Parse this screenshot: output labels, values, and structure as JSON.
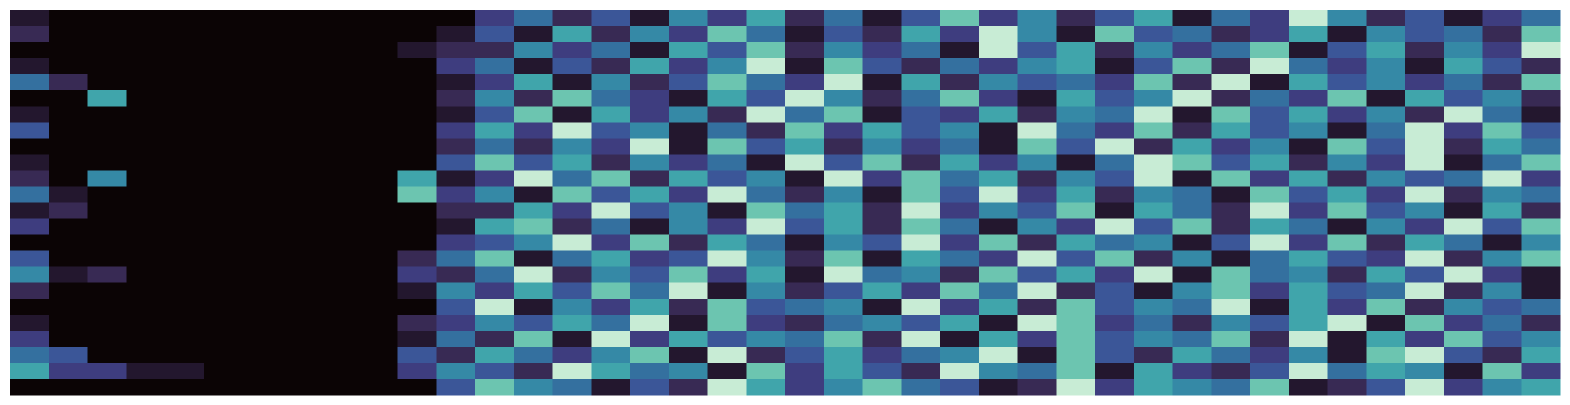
{
  "chart_data": {
    "type": "heatmap",
    "zlim": [
      0,
      9
    ],
    "colormap": [
      "#0b0405",
      "#23172e",
      "#382a54",
      "#3e3d7f",
      "#3b5698",
      "#34709f",
      "#3589a6",
      "#40a5ab",
      "#6cc5b0",
      "#c8ecd5"
    ],
    "values": [
      [
        1,
        0,
        0,
        0,
        0,
        0,
        0,
        0,
        0,
        0,
        0,
        0,
        3,
        5,
        2,
        4,
        1,
        6,
        3,
        7,
        2,
        5,
        1,
        4,
        8,
        3,
        6,
        2,
        4,
        7,
        1,
        5,
        3,
        9,
        6,
        2,
        4,
        1,
        3,
        5
      ],
      [
        2,
        0,
        0,
        0,
        0,
        0,
        0,
        0,
        0,
        0,
        0,
        1,
        4,
        1,
        7,
        2,
        6,
        3,
        8,
        5,
        1,
        4,
        2,
        7,
        3,
        9,
        6,
        1,
        8,
        4,
        5,
        2,
        3,
        7,
        1,
        6,
        4,
        5,
        2,
        8
      ],
      [
        0,
        0,
        0,
        0,
        0,
        0,
        0,
        0,
        0,
        0,
        1,
        2,
        2,
        6,
        3,
        5,
        1,
        7,
        4,
        8,
        2,
        6,
        3,
        5,
        1,
        9,
        4,
        7,
        2,
        6,
        3,
        5,
        8,
        1,
        4,
        7,
        2,
        6,
        3,
        9
      ],
      [
        1,
        0,
        0,
        0,
        0,
        0,
        0,
        0,
        0,
        0,
        0,
        3,
        5,
        1,
        4,
        2,
        7,
        3,
        6,
        9,
        1,
        8,
        4,
        2,
        5,
        3,
        6,
        7,
        1,
        4,
        8,
        2,
        9,
        5,
        3,
        6,
        1,
        7,
        4,
        2
      ],
      [
        5,
        2,
        0,
        0,
        0,
        0,
        0,
        0,
        0,
        0,
        0,
        1,
        3,
        7,
        1,
        6,
        2,
        4,
        8,
        5,
        3,
        9,
        1,
        7,
        2,
        6,
        4,
        5,
        3,
        8,
        2,
        9,
        1,
        7,
        4,
        6,
        3,
        5,
        2,
        8
      ],
      [
        0,
        0,
        7,
        0,
        0,
        0,
        0,
        0,
        0,
        0,
        0,
        2,
        6,
        2,
        8,
        5,
        3,
        1,
        7,
        4,
        9,
        6,
        2,
        5,
        8,
        3,
        1,
        7,
        4,
        6,
        9,
        2,
        5,
        3,
        8,
        1,
        7,
        4,
        6,
        2
      ],
      [
        1,
        0,
        0,
        0,
        0,
        0,
        0,
        0,
        0,
        0,
        0,
        1,
        4,
        8,
        1,
        7,
        3,
        6,
        2,
        9,
        5,
        8,
        1,
        4,
        3,
        7,
        2,
        6,
        5,
        9,
        1,
        8,
        4,
        7,
        3,
        6,
        2,
        9,
        5,
        1
      ],
      [
        4,
        0,
        0,
        0,
        0,
        0,
        0,
        0,
        0,
        0,
        0,
        3,
        7,
        3,
        9,
        4,
        6,
        1,
        5,
        2,
        8,
        3,
        7,
        4,
        6,
        1,
        9,
        5,
        3,
        8,
        2,
        7,
        4,
        6,
        1,
        5,
        9,
        3,
        8,
        4
      ],
      [
        0,
        0,
        0,
        0,
        0,
        0,
        0,
        0,
        0,
        0,
        0,
        2,
        5,
        2,
        6,
        3,
        9,
        1,
        8,
        4,
        7,
        2,
        6,
        3,
        5,
        1,
        8,
        4,
        9,
        2,
        7,
        3,
        6,
        1,
        8,
        4,
        9,
        2,
        7,
        5
      ],
      [
        1,
        0,
        0,
        0,
        0,
        0,
        0,
        0,
        0,
        0,
        0,
        4,
        8,
        4,
        7,
        2,
        6,
        3,
        5,
        1,
        9,
        4,
        8,
        2,
        7,
        3,
        6,
        1,
        5,
        9,
        8,
        4,
        7,
        2,
        6,
        3,
        9,
        1,
        5,
        8
      ],
      [
        2,
        0,
        6,
        0,
        0,
        0,
        0,
        0,
        0,
        0,
        7,
        1,
        3,
        9,
        5,
        8,
        2,
        7,
        4,
        6,
        1,
        9,
        3,
        8,
        5,
        7,
        2,
        6,
        4,
        9,
        1,
        8,
        3,
        7,
        2,
        6,
        4,
        5,
        9,
        3
      ],
      [
        5,
        1,
        0,
        0,
        0,
        0,
        0,
        0,
        0,
        0,
        8,
        3,
        6,
        1,
        8,
        4,
        7,
        3,
        9,
        5,
        2,
        6,
        1,
        8,
        4,
        9,
        3,
        7,
        2,
        6,
        5,
        1,
        8,
        4,
        7,
        3,
        9,
        2,
        6,
        5
      ],
      [
        1,
        2,
        0,
        0,
        0,
        0,
        0,
        0,
        0,
        0,
        0,
        2,
        2,
        7,
        3,
        9,
        4,
        6,
        1,
        8,
        5,
        7,
        2,
        9,
        3,
        6,
        4,
        8,
        1,
        7,
        5,
        2,
        9,
        3,
        8,
        4,
        6,
        1,
        7,
        2
      ],
      [
        3,
        0,
        0,
        0,
        0,
        0,
        0,
        0,
        0,
        0,
        0,
        1,
        7,
        8,
        2,
        5,
        1,
        6,
        3,
        9,
        4,
        7,
        2,
        8,
        5,
        1,
        6,
        3,
        9,
        4,
        8,
        2,
        7,
        5,
        1,
        6,
        3,
        9,
        4,
        8
      ],
      [
        0,
        0,
        0,
        0,
        0,
        0,
        0,
        0,
        0,
        0,
        0,
        3,
        4,
        6,
        9,
        3,
        8,
        2,
        7,
        5,
        1,
        6,
        4,
        9,
        3,
        8,
        2,
        7,
        5,
        6,
        1,
        4,
        9,
        3,
        8,
        2,
        7,
        5,
        1,
        6
      ],
      [
        4,
        0,
        0,
        0,
        0,
        0,
        0,
        0,
        0,
        0,
        2,
        5,
        8,
        1,
        5,
        7,
        3,
        4,
        9,
        6,
        2,
        8,
        1,
        7,
        5,
        3,
        9,
        4,
        8,
        2,
        6,
        1,
        5,
        7,
        4,
        3,
        9,
        2,
        6,
        8
      ],
      [
        6,
        1,
        2,
        0,
        0,
        0,
        0,
        0,
        0,
        0,
        3,
        2,
        5,
        9,
        2,
        6,
        4,
        8,
        3,
        7,
        1,
        9,
        5,
        6,
        2,
        8,
        4,
        7,
        3,
        9,
        1,
        8,
        5,
        6,
        2,
        7,
        4,
        9,
        3,
        1
      ],
      [
        2,
        0,
        0,
        0,
        0,
        0,
        0,
        0,
        0,
        0,
        1,
        6,
        3,
        7,
        4,
        8,
        5,
        9,
        1,
        6,
        2,
        4,
        7,
        3,
        8,
        5,
        9,
        2,
        4,
        1,
        6,
        8,
        3,
        7,
        4,
        5,
        9,
        2,
        6,
        1
      ],
      [
        0,
        0,
        0,
        0,
        0,
        0,
        0,
        0,
        0,
        0,
        0,
        4,
        9,
        1,
        6,
        3,
        7,
        2,
        8,
        4,
        5,
        6,
        1,
        9,
        3,
        7,
        2,
        8,
        4,
        6,
        5,
        9,
        1,
        7,
        3,
        8,
        2,
        6,
        4,
        5
      ],
      [
        1,
        0,
        0,
        0,
        0,
        0,
        0,
        0,
        0,
        0,
        2,
        3,
        6,
        4,
        7,
        5,
        9,
        1,
        8,
        3,
        2,
        5,
        6,
        4,
        7,
        1,
        9,
        8,
        3,
        5,
        2,
        6,
        4,
        7,
        9,
        1,
        8,
        3,
        5,
        2
      ],
      [
        3,
        0,
        0,
        0,
        0,
        0,
        0,
        0,
        0,
        0,
        1,
        5,
        2,
        8,
        1,
        9,
        3,
        7,
        4,
        6,
        5,
        8,
        2,
        9,
        1,
        7,
        3,
        8,
        4,
        6,
        5,
        8,
        2,
        9,
        1,
        7,
        3,
        8,
        4,
        6
      ],
      [
        5,
        4,
        0,
        0,
        0,
        0,
        0,
        0,
        0,
        0,
        4,
        2,
        7,
        5,
        3,
        6,
        8,
        1,
        9,
        2,
        4,
        7,
        3,
        5,
        6,
        9,
        1,
        8,
        4,
        2,
        7,
        5,
        3,
        6,
        1,
        8,
        9,
        4,
        2,
        7
      ],
      [
        7,
        3,
        3,
        1,
        1,
        0,
        0,
        0,
        0,
        0,
        3,
        6,
        4,
        2,
        9,
        7,
        5,
        6,
        1,
        8,
        3,
        7,
        4,
        2,
        9,
        6,
        5,
        8,
        1,
        7,
        3,
        2,
        4,
        9,
        5,
        7,
        6,
        1,
        8,
        3
      ],
      [
        0,
        0,
        0,
        0,
        0,
        0,
        0,
        0,
        0,
        0,
        0,
        4,
        8,
        6,
        5,
        1,
        4,
        2,
        9,
        7,
        3,
        6,
        8,
        5,
        4,
        1,
        2,
        9,
        3,
        7,
        6,
        5,
        8,
        1,
        2,
        4,
        9,
        3,
        6,
        7
      ]
    ]
  }
}
